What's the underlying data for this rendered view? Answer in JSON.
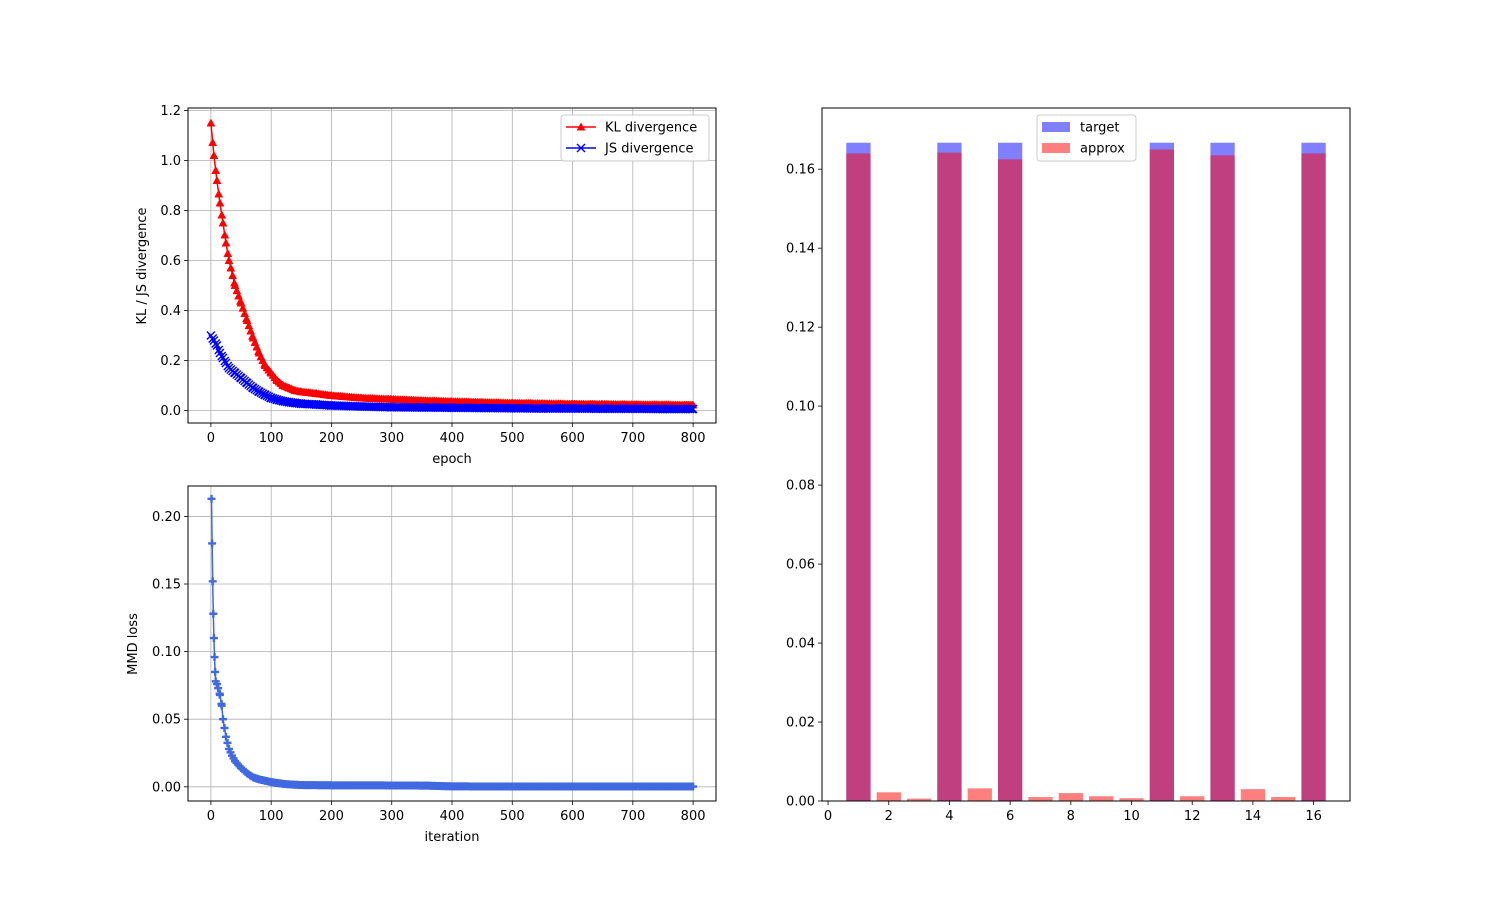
{
  "chart_data": [
    {
      "type": "line",
      "xlabel": "epoch",
      "ylabel": "KL / JS divergence",
      "xlim": [
        -38,
        838
      ],
      "ylim": [
        -0.05,
        1.21
      ],
      "xticks": [
        0,
        100,
        200,
        300,
        400,
        500,
        600,
        700,
        800
      ],
      "xtick_labels": [
        "0",
        "100",
        "200",
        "300",
        "400",
        "500",
        "600",
        "700",
        "800"
      ],
      "yticks": [
        0.0,
        0.2,
        0.4,
        0.6,
        0.8,
        1.0,
        1.2
      ],
      "ytick_labels": [
        "0.0",
        "0.2",
        "0.4",
        "0.6",
        "0.8",
        "1.0",
        "1.2"
      ],
      "grid": true,
      "legend_position": "top-right",
      "x": [
        0,
        5,
        10,
        15,
        20,
        25,
        30,
        40,
        50,
        60,
        70,
        80,
        90,
        100,
        110,
        120,
        130,
        140,
        150,
        175,
        200,
        250,
        300,
        350,
        400,
        450,
        500,
        550,
        600,
        650,
        700,
        750,
        800
      ],
      "series": [
        {
          "name": "KL divergence",
          "color": "#ff0000",
          "marker": "triangle",
          "values": [
            1.15,
            1.02,
            0.92,
            0.83,
            0.75,
            0.67,
            0.6,
            0.5,
            0.43,
            0.36,
            0.29,
            0.23,
            0.18,
            0.15,
            0.12,
            0.1,
            0.09,
            0.08,
            0.075,
            0.068,
            0.06,
            0.05,
            0.045,
            0.04,
            0.036,
            0.033,
            0.03,
            0.028,
            0.026,
            0.025,
            0.024,
            0.023,
            0.022
          ]
        },
        {
          "name": "JS divergence",
          "color": "#0000ff",
          "marker": "x",
          "values": [
            0.3,
            0.28,
            0.26,
            0.23,
            0.21,
            0.19,
            0.17,
            0.15,
            0.13,
            0.11,
            0.09,
            0.075,
            0.062,
            0.05,
            0.043,
            0.037,
            0.033,
            0.03,
            0.027,
            0.024,
            0.02,
            0.016,
            0.013,
            0.012,
            0.011,
            0.01,
            0.009,
            0.008,
            0.008,
            0.007,
            0.007,
            0.006,
            0.006
          ]
        }
      ]
    },
    {
      "type": "line",
      "xlabel": "iteration",
      "ylabel": "MMD loss",
      "xlim": [
        -38,
        838
      ],
      "ylim": [
        -0.0105,
        0.2225
      ],
      "xticks": [
        0,
        100,
        200,
        300,
        400,
        500,
        600,
        700,
        800
      ],
      "xtick_labels": [
        "0",
        "100",
        "200",
        "300",
        "400",
        "500",
        "600",
        "700",
        "800"
      ],
      "yticks": [
        0.0,
        0.05,
        0.1,
        0.15,
        0.2
      ],
      "ytick_labels": [
        "0.00",
        "0.05",
        "0.10",
        "0.15",
        "0.20"
      ],
      "grid": true,
      "x": [
        1,
        2,
        3,
        4,
        5,
        6,
        7,
        8,
        10,
        12,
        15,
        18,
        20,
        25,
        30,
        35,
        40,
        50,
        60,
        70,
        80,
        90,
        100,
        110,
        120,
        130,
        150,
        200,
        300,
        355,
        400,
        500,
        600,
        700,
        800
      ],
      "series": [
        {
          "color": "#4169e1",
          "marker": "plus",
          "values": [
            0.213,
            0.18,
            0.152,
            0.128,
            0.11,
            0.096,
            0.085,
            0.078,
            0.076,
            0.073,
            0.068,
            0.06,
            0.05,
            0.037,
            0.028,
            0.023,
            0.019,
            0.014,
            0.01,
            0.007,
            0.0055,
            0.0045,
            0.0035,
            0.0028,
            0.0022,
            0.0018,
            0.0013,
            0.0011,
            0.001,
            0.0009,
            0.0003,
            0.0002,
            0.0002,
            0.0002,
            0.0002
          ]
        }
      ]
    },
    {
      "type": "bar",
      "xlim": [
        -0.2,
        17.2
      ],
      "ylim": [
        0,
        0.1755
      ],
      "xticks": [
        0,
        2,
        4,
        6,
        8,
        10,
        12,
        14,
        16
      ],
      "xtick_labels": [
        "0",
        "2",
        "4",
        "6",
        "8",
        "10",
        "12",
        "14",
        "16"
      ],
      "yticks": [
        0.0,
        0.02,
        0.04,
        0.06,
        0.08,
        0.1,
        0.12,
        0.14,
        0.16
      ],
      "ytick_labels": [
        "0.00",
        "0.02",
        "0.04",
        "0.06",
        "0.08",
        "0.10",
        "0.12",
        "0.14",
        "0.16"
      ],
      "grid": false,
      "legend_position": "top-center",
      "categories": [
        1,
        2,
        3,
        4,
        5,
        6,
        7,
        8,
        9,
        10,
        11,
        12,
        13,
        14,
        15,
        16
      ],
      "series": [
        {
          "name": "target",
          "color": "#0000ff",
          "alpha": 0.5,
          "values": [
            0.1667,
            0,
            0,
            0.1667,
            0,
            0.1667,
            0,
            0,
            0,
            0,
            0.1667,
            0,
            0.1667,
            0,
            0,
            0.1667
          ]
        },
        {
          "name": "approx",
          "color": "#ff0000",
          "alpha": 0.5,
          "values": [
            0.164,
            0.0022,
            0.0006,
            0.1642,
            0.0032,
            0.1625,
            0.001,
            0.002,
            0.0012,
            0.0007,
            0.165,
            0.0012,
            0.1635,
            0.003,
            0.001,
            0.164
          ]
        }
      ]
    }
  ]
}
